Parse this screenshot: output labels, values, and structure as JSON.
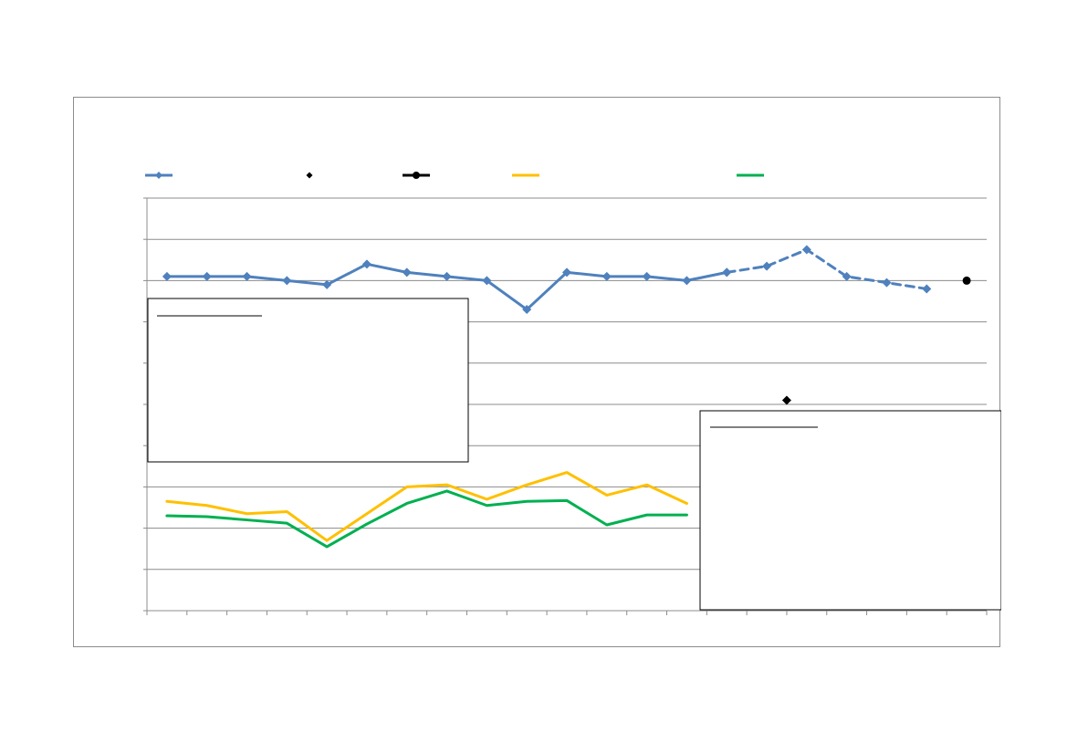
{
  "chart_data": {
    "type": "line",
    "title": "",
    "xlabel": "",
    "ylabel": "",
    "ylim": [
      0,
      10
    ],
    "grid": true,
    "legend_position": "top",
    "x": [
      1,
      2,
      3,
      4,
      5,
      6,
      7,
      8,
      9,
      10,
      11,
      12,
      13,
      14,
      15,
      16,
      17,
      18,
      19,
      20,
      21
    ],
    "series": [
      {
        "color": "#4f81bd",
        "style": "solid",
        "marker": "diamond",
        "x": [
          1,
          2,
          3,
          4,
          5,
          6,
          7,
          8,
          9,
          10,
          11,
          12,
          13,
          14,
          15
        ],
        "values": [
          8.1,
          8.1,
          8.1,
          8.0,
          7.9,
          8.4,
          8.2,
          8.1,
          8.0,
          7.3,
          8.2,
          8.1,
          8.1,
          8.0,
          8.2
        ]
      },
      {
        "color": "#4f81bd",
        "style": "dashed",
        "marker": "diamond",
        "x": [
          15,
          16,
          17,
          18,
          19,
          20
        ],
        "values": [
          8.2,
          8.35,
          8.75,
          8.1,
          7.95,
          7.8
        ]
      },
      {
        "color": "#000000",
        "style": "marker-only",
        "marker": "diamond",
        "x": [
          16.5
        ],
        "values": [
          5.1
        ]
      },
      {
        "color": "#000000",
        "style": "marker-only",
        "marker": "circle",
        "x": [
          21
        ],
        "values": [
          8.0
        ]
      },
      {
        "color": "#ffc000",
        "style": "solid",
        "marker": "none",
        "x": [
          1,
          2,
          3,
          4,
          5,
          6,
          7,
          8,
          9,
          10,
          11,
          12,
          13,
          14
        ],
        "values": [
          2.65,
          2.55,
          2.35,
          2.4,
          1.7,
          2.35,
          3.0,
          3.05,
          2.7,
          3.05,
          3.35,
          2.8,
          3.05,
          2.6
        ]
      },
      {
        "color": "#00b050",
        "style": "solid",
        "marker": "none",
        "x": [
          1,
          2,
          3,
          4,
          5,
          6,
          7,
          8,
          9,
          10,
          11,
          12,
          13,
          14
        ],
        "values": [
          2.3,
          2.28,
          2.2,
          2.12,
          1.55,
          2.1,
          2.6,
          2.9,
          2.55,
          2.65,
          2.67,
          2.08,
          2.32,
          2.32
        ]
      }
    ],
    "legend": [
      {
        "color": "#4f81bd",
        "marker": "diamond",
        "line": true
      },
      {
        "color": "#000000",
        "marker": "diamond",
        "line": false
      },
      {
        "color": "#000000",
        "marker": "circle",
        "line": true
      },
      {
        "color": "#ffc000",
        "marker": "none",
        "line": true
      },
      {
        "color": "#00b050",
        "marker": "none",
        "line": true
      }
    ],
    "annotations": [
      {
        "box": "upper-left",
        "text": ""
      },
      {
        "box": "lower-right",
        "text": ""
      }
    ]
  }
}
